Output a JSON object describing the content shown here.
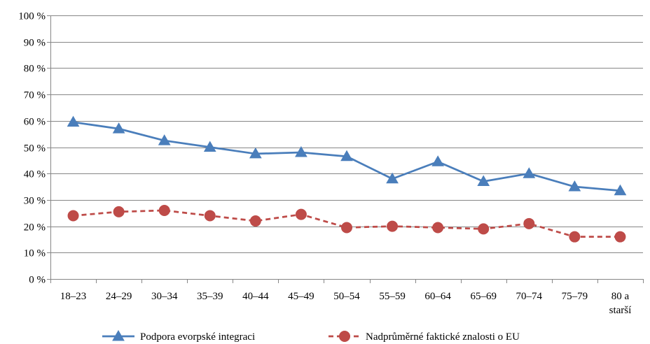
{
  "chart_data": {
    "type": "line",
    "categories": [
      "18–23",
      "24–29",
      "30–34",
      "35–39",
      "40–44",
      "45–49",
      "50–54",
      "55–59",
      "60–64",
      "65–69",
      "70–74",
      "75–79",
      [
        "80 a",
        "starší"
      ]
    ],
    "y_ticks": [
      "0 %",
      "10 %",
      "20 %",
      "30 %",
      "40 %",
      "50 %",
      "60 %",
      "70 %",
      "80 %",
      "90 %",
      "100 %"
    ],
    "ylim": [
      0,
      100
    ],
    "grid": true,
    "legend": "bottom",
    "series": [
      {
        "name": "Podpora evorpské integraci",
        "color": "#4a7ebb",
        "marker": "triangle",
        "line_style": "solid",
        "values": [
          59.5,
          57,
          52.5,
          50,
          47.5,
          48,
          46.5,
          38,
          44.5,
          37,
          40,
          35,
          33.5
        ]
      },
      {
        "name": "Nadprůměrné faktické znalosti o EU",
        "color": "#be4b48",
        "marker": "circle",
        "line_style": "dashed",
        "values": [
          24,
          25.5,
          26,
          24,
          22,
          24.5,
          19.5,
          20,
          19.5,
          19,
          21,
          16,
          16
        ]
      }
    ]
  }
}
